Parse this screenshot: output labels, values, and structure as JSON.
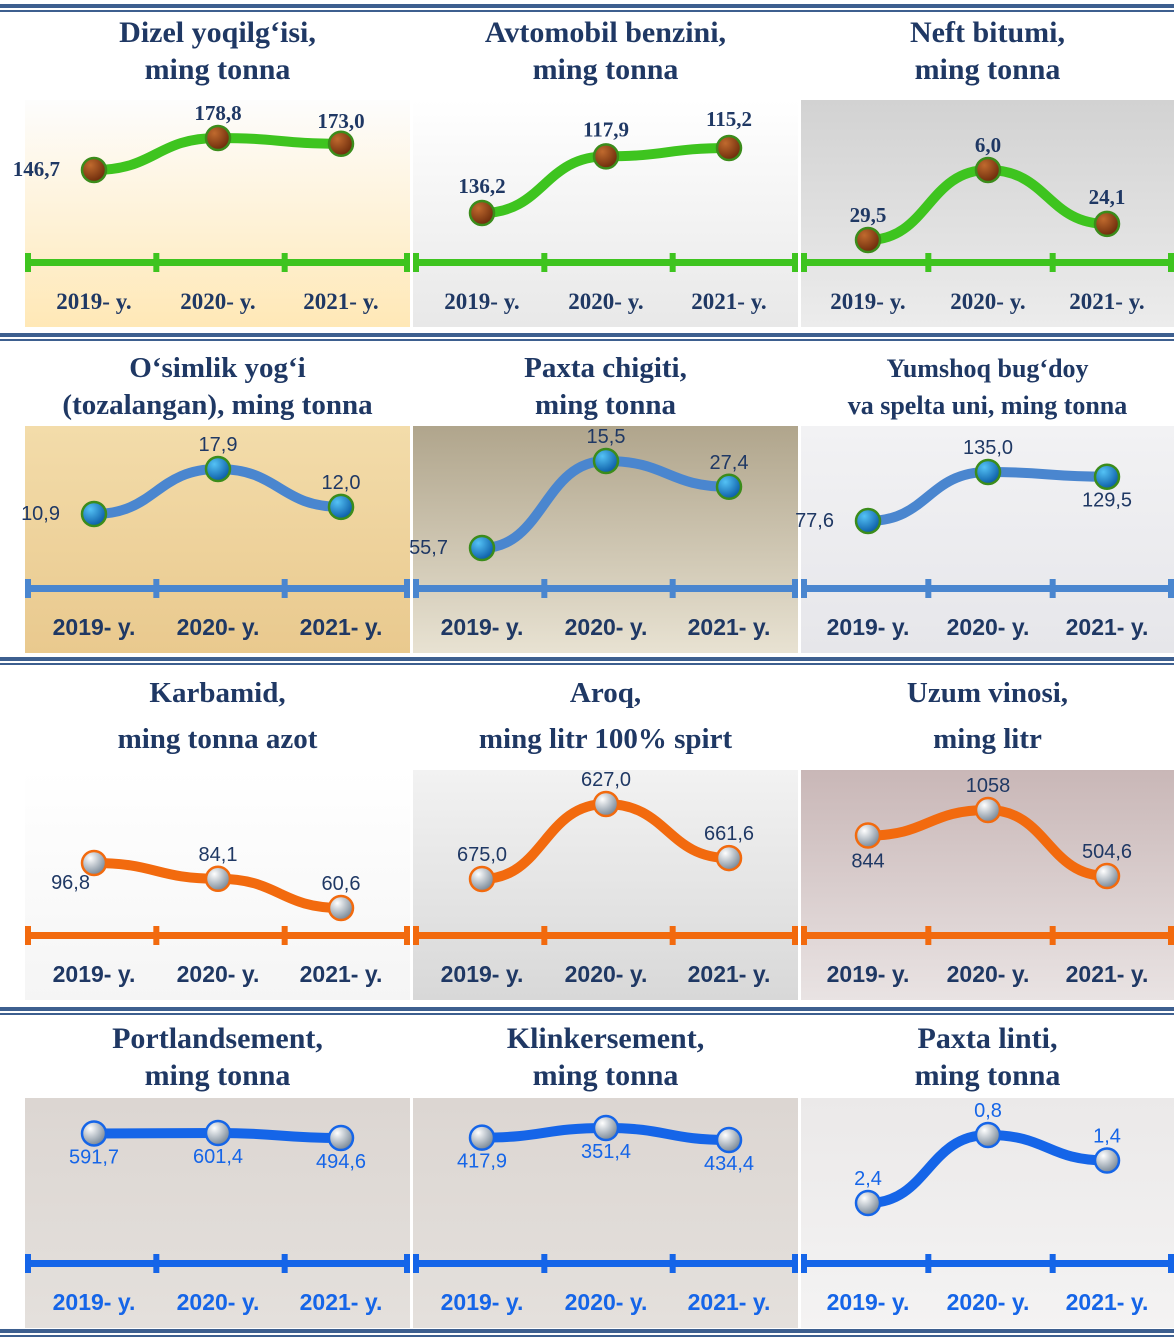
{
  "theme": {
    "green": "#3ec41f",
    "blue_light": "#4a86cf",
    "orange": "#f26a0e",
    "blue": "#1565e8",
    "title_color": "#1f3864",
    "year_dark": "#1f3864",
    "year_blue": "#1565e8"
  },
  "chart_data": [
    {
      "type": "line",
      "title": [
        "Dizel yoqilg‘isi,",
        "ming tonna"
      ],
      "categories": [
        "2019- y.",
        "2020- y.",
        "2021- y."
      ],
      "values": [
        146.7,
        178.8,
        173.0
      ],
      "labels": [
        "146,7",
        "178,8",
        "173,0"
      ]
    },
    {
      "type": "line",
      "title": [
        "Avtomobil benzini,",
        "ming tonna"
      ],
      "categories": [
        "2019- y.",
        "2020- y.",
        "2021- y."
      ],
      "values": [
        136.2,
        117.9,
        115.2
      ],
      "labels": [
        "136,2",
        "117,9",
        "115,2"
      ]
    },
    {
      "type": "line",
      "title": [
        "Neft bitumi,",
        "ming tonna"
      ],
      "categories": [
        "2019- y.",
        "2020- y.",
        "2021- y."
      ],
      "values": [
        29.5,
        6.0,
        24.1
      ],
      "labels": [
        "29,5",
        "6,0",
        "24,1"
      ]
    },
    {
      "type": "line",
      "title": [
        "O‘simlik yog‘i",
        "(tozalangan), ming tonna"
      ],
      "categories": [
        "2019- y.",
        "2020- y.",
        "2021- y."
      ],
      "values": [
        10.9,
        17.9,
        12.0
      ],
      "labels": [
        "10,9",
        "17,9",
        "12,0"
      ]
    },
    {
      "type": "line",
      "title": [
        "Paxta chigiti,",
        "ming tonna"
      ],
      "categories": [
        "2019- y.",
        "2020- y.",
        "2021- y."
      ],
      "values": [
        55.7,
        15.5,
        27.4
      ],
      "labels": [
        "55,7",
        "15,5",
        "27,4"
      ]
    },
    {
      "type": "line",
      "title": [
        "Yumshoq bug‘doy",
        "va spelta uni, ming tonna"
      ],
      "categories": [
        "2019- y.",
        "2020- y.",
        "2021- y."
      ],
      "values": [
        77.6,
        135.0,
        129.5
      ],
      "labels": [
        "77,6",
        "135,0",
        "129,5"
      ]
    },
    {
      "type": "line",
      "title": [
        "Karbamid,",
        "ming tonna azot"
      ],
      "categories": [
        "2019- y.",
        "2020- y.",
        "2021- y."
      ],
      "values": [
        96.8,
        84.1,
        60.6
      ],
      "labels": [
        "96,8",
        "84,1",
        "60,6"
      ]
    },
    {
      "type": "line",
      "title": [
        "Aroq,",
        "ming litr 100% spirt"
      ],
      "categories": [
        "2019- y.",
        "2020- y.",
        "2021- y."
      ],
      "values": [
        675.0,
        627.0,
        661.6
      ],
      "labels": [
        "675,0",
        "627,0",
        "661,6"
      ]
    },
    {
      "type": "line",
      "title": [
        "Uzum vinosi,",
        "ming litr"
      ],
      "categories": [
        "2019- y.",
        "2020- y.",
        "2021- y."
      ],
      "values": [
        844,
        1058,
        504.6
      ],
      "labels": [
        "844",
        "1058",
        "504,6"
      ]
    },
    {
      "type": "line",
      "title": [
        "Portlandsement,",
        "ming tonna"
      ],
      "categories": [
        "2019- y.",
        "2020- y.",
        "2021- y."
      ],
      "values": [
        591.7,
        601.4,
        494.6
      ],
      "labels": [
        "591,7",
        "601,4",
        "494,6"
      ]
    },
    {
      "type": "line",
      "title": [
        "Klinkersement,",
        "ming tonna"
      ],
      "categories": [
        "2019- y.",
        "2020- y.",
        "2021- y."
      ],
      "values": [
        417.9,
        351.4,
        434.4
      ],
      "labels": [
        "417,9",
        "351,4",
        "434,4"
      ]
    },
    {
      "type": "line",
      "title": [
        "Paxta linti,",
        "ming tonna"
      ],
      "categories": [
        "2019- y.",
        "2020- y.",
        "2021- y."
      ],
      "values": [
        2.4,
        0.8,
        1.4
      ],
      "labels": [
        "2,4",
        "0,8",
        "1,4"
      ]
    }
  ]
}
